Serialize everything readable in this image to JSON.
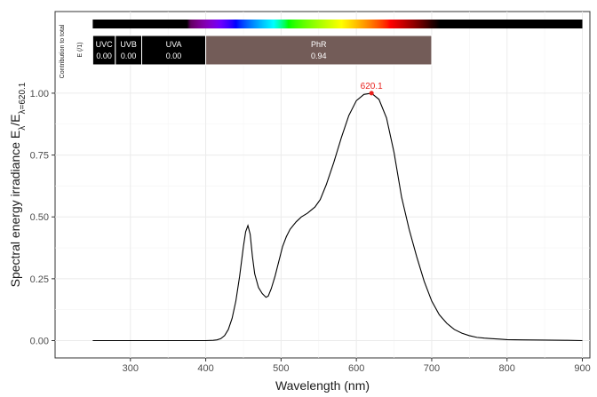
{
  "chart_data": {
    "type": "line",
    "xlabel": "Wavelength (nm)",
    "ylabel": {
      "prefix": "Spectral  energy  irradiance  E",
      "sub1": "λ",
      "sep": "/E",
      "sub2": "λ=620.1"
    },
    "xlim": [
      200,
      910
    ],
    "ylim": [
      -0.07,
      1.33
    ],
    "x_ticks": [
      300,
      400,
      500,
      600,
      700,
      800,
      900
    ],
    "y_ticks": [
      0.0,
      0.25,
      0.5,
      0.75,
      1.0
    ],
    "y_tick_labels": [
      "0.00",
      "0.25",
      "0.50",
      "0.75",
      "1.00"
    ],
    "grid": true,
    "peak": {
      "x": 620.1,
      "y": 1.0,
      "label": "620.1",
      "color": "#e8211d"
    },
    "series": [
      {
        "line_color": "#000000",
        "x": [
          250,
          300,
          350,
          400,
          410,
          415,
          420,
          425,
          430,
          435,
          440,
          445,
          450,
          453,
          456,
          459,
          462,
          465,
          470,
          475,
          480,
          483,
          487,
          492,
          497,
          502,
          507,
          512,
          520,
          527,
          535,
          545,
          552,
          560,
          570,
          580,
          590,
          600,
          610,
          620,
          630,
          640,
          650,
          660,
          670,
          680,
          690,
          700,
          710,
          720,
          730,
          740,
          750,
          760,
          770,
          780,
          790,
          800,
          820,
          850,
          880,
          900
        ],
        "y": [
          0,
          0,
          0,
          0,
          0.001,
          0.003,
          0.008,
          0.02,
          0.045,
          0.09,
          0.16,
          0.26,
          0.38,
          0.44,
          0.465,
          0.43,
          0.34,
          0.27,
          0.215,
          0.19,
          0.175,
          0.18,
          0.21,
          0.26,
          0.32,
          0.38,
          0.42,
          0.45,
          0.48,
          0.5,
          0.515,
          0.54,
          0.57,
          0.63,
          0.72,
          0.82,
          0.91,
          0.97,
          0.995,
          1.0,
          0.975,
          0.9,
          0.76,
          0.58,
          0.45,
          0.34,
          0.24,
          0.16,
          0.105,
          0.07,
          0.045,
          0.03,
          0.02,
          0.013,
          0.01,
          0.008,
          0.006,
          0.004,
          0.003,
          0.002,
          0.001,
          0.0
        ]
      }
    ],
    "spectrum_bar": {
      "x_range": [
        250,
        900
      ]
    },
    "contribution": {
      "side_label_1": "Contribution  to  total",
      "side_label_2": "E  (/1)",
      "bands": [
        {
          "name": "UVC",
          "value": "0.00",
          "x_range": [
            250,
            280
          ],
          "color": "#000000"
        },
        {
          "name": "UVB",
          "value": "0.00",
          "x_range": [
            280,
            315
          ],
          "color": "#000000"
        },
        {
          "name": "UVA",
          "value": "0.00",
          "x_range": [
            315,
            400
          ],
          "color": "#000000"
        },
        {
          "name": "PhR",
          "value": "0.94",
          "x_range": [
            400,
            700
          ],
          "color": "#735c58"
        }
      ]
    }
  }
}
